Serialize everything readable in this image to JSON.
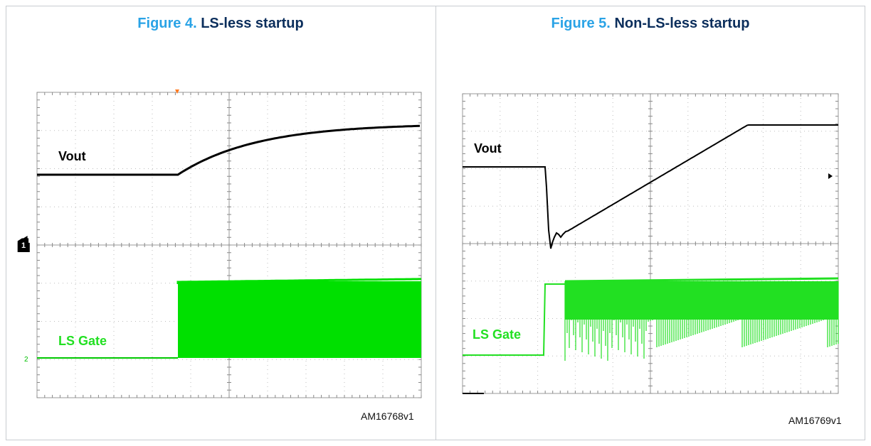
{
  "figures": [
    {
      "caption_number": "Figure 4.",
      "caption_title": "LS-less startup",
      "ref_code": "AM16768v1",
      "channel_markers": {
        "ch1": "1",
        "ch2": "2"
      }
    },
    {
      "caption_number": "Figure 5.",
      "caption_title": "Non-LS-less startup",
      "ref_code": "AM16769v1"
    }
  ],
  "chart_data": [
    {
      "type": "line",
      "title": "LS-less startup",
      "series": [
        {
          "name": "Vout",
          "color": "#000000",
          "shape": "flat then smooth exponential rise to plateau"
        },
        {
          "name": "LS Gate",
          "color": "#00e000",
          "shape": "low then dense switching band after startup"
        }
      ],
      "grid": true
    },
    {
      "type": "line",
      "title": "Non-LS-less startup",
      "series": [
        {
          "name": "Vout",
          "color": "#000000",
          "shape": "flat, sharp dip with ringing, then linear ramp to plateau"
        },
        {
          "name": "LS Gate",
          "color": "#22e022",
          "shape": "low then switching with varying pulse depth"
        }
      ],
      "grid": true
    }
  ]
}
